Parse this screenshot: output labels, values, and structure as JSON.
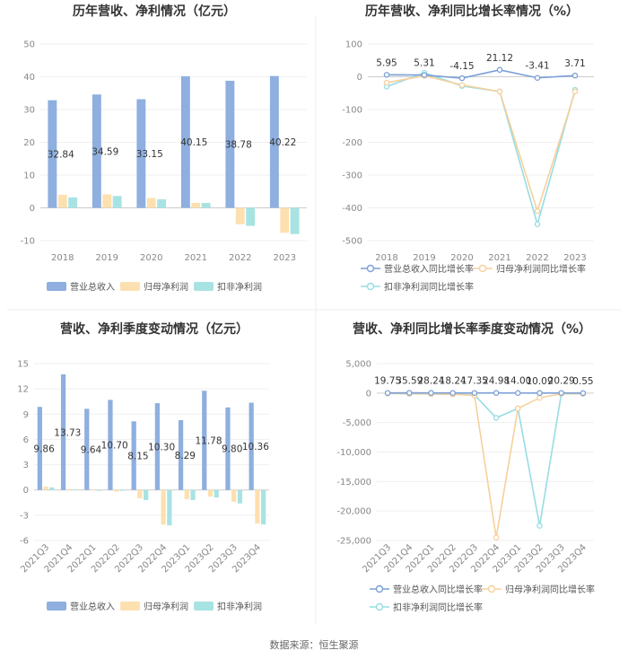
{
  "colors": {
    "revenue": "#8eafdf",
    "net_profit": "#fde0b0",
    "deducted_profit": "#a8e3e3",
    "revenue_line": "#7a9fd6",
    "net_line": "#f7d09c",
    "deducted_line": "#97dde3"
  },
  "source": "数据来源：恒生聚源",
  "chart_data": [
    {
      "type": "bar",
      "title": "历年营收、净利情况（亿元）",
      "categories": [
        "2018",
        "2019",
        "2020",
        "2021",
        "2022",
        "2023"
      ],
      "ylim": [
        -10,
        50
      ],
      "yticks": [
        -10,
        0,
        10,
        20,
        30,
        40,
        50
      ],
      "series": [
        {
          "name": "营业总收入",
          "values": [
            32.84,
            34.59,
            33.15,
            40.15,
            38.78,
            40.22
          ]
        },
        {
          "name": "归母净利润",
          "values": [
            4.0,
            4.1,
            3.0,
            1.5,
            -5.0,
            -7.6
          ]
        },
        {
          "name": "扣非净利润",
          "values": [
            3.2,
            3.6,
            2.6,
            1.5,
            -5.5,
            -8.0
          ]
        }
      ],
      "data_labels": [
        "32.84",
        "34.59",
        "33.15",
        "40.15",
        "38.78",
        "40.22"
      ],
      "legend": "bottom"
    },
    {
      "type": "line",
      "title": "历年营收、净利同比增长率情况（%）",
      "categories": [
        "2018",
        "2019",
        "2020",
        "2021",
        "2022",
        "2023"
      ],
      "ylim": [
        -500,
        100
      ],
      "yticks": [
        -500,
        -400,
        -300,
        -200,
        -100,
        0,
        100
      ],
      "series": [
        {
          "name": "营业总收入同比增长率",
          "values": [
            5.95,
            5.31,
            -4.15,
            21.12,
            -3.41,
            3.71
          ]
        },
        {
          "name": "归母净利润同比增长率",
          "values": [
            -18,
            3,
            -25,
            -45,
            -410,
            -45
          ]
        },
        {
          "name": "扣非净利润同比增长率",
          "values": [
            -30,
            12,
            -28,
            -45,
            -450,
            -40
          ]
        }
      ],
      "data_labels": [
        "5.95",
        "5.31",
        "-4.15",
        "21.12",
        "-3.41",
        "3.71"
      ],
      "legend": "bottom"
    },
    {
      "type": "bar",
      "title": "营收、净利季度变动情况（亿元）",
      "categories": [
        "2021Q3",
        "2021Q4",
        "2022Q1",
        "2022Q2",
        "2022Q3",
        "2022Q4",
        "2023Q1",
        "2023Q2",
        "2023Q3",
        "2023Q4"
      ],
      "ylim": [
        -6,
        15
      ],
      "yticks": [
        -6,
        -3,
        0,
        3,
        6,
        9,
        12,
        15
      ],
      "series": [
        {
          "name": "营业总收入",
          "values": [
            9.86,
            13.73,
            9.64,
            10.7,
            8.15,
            10.3,
            8.29,
            11.78,
            9.8,
            10.36
          ]
        },
        {
          "name": "归母净利润",
          "values": [
            0.4,
            0.1,
            -0.05,
            -0.2,
            -1.0,
            -4.1,
            -1.1,
            -0.8,
            -1.4,
            -4.0
          ]
        },
        {
          "name": "扣非净利润",
          "values": [
            0.3,
            0.05,
            -0.1,
            -0.1,
            -1.2,
            -4.2,
            -1.2,
            -0.9,
            -1.6,
            -4.1
          ]
        }
      ],
      "data_labels": [
        "9.86",
        "13.73",
        "9.64",
        "10.70",
        "8.15",
        "10.30",
        "8.29",
        "11.78",
        "9.80",
        "10.36"
      ],
      "legend": "bottom"
    },
    {
      "type": "line",
      "title": "营收、净利同比增长率季度变动情况（%）",
      "categories": [
        "2021Q3",
        "2021Q4",
        "2022Q1",
        "2022Q2",
        "2022Q3",
        "2022Q4",
        "2023Q1",
        "2023Q2",
        "2023Q3",
        "2023Q4"
      ],
      "ylim": [
        -25000,
        5000
      ],
      "yticks": [
        -25000,
        -20000,
        -15000,
        -10000,
        -5000,
        0,
        5000
      ],
      "series": [
        {
          "name": "营业总收入同比增长率",
          "values": [
            19.75,
            35.59,
            28.24,
            18.24,
            17.35,
            24.98,
            14.0,
            10.09,
            20.29,
            0.55
          ]
        },
        {
          "name": "归母净利润同比增长率",
          "values": [
            -50,
            -100,
            -150,
            -200,
            -400,
            -24500,
            -2600,
            -800,
            -100,
            -100
          ]
        },
        {
          "name": "扣非净利润同比增长率",
          "values": [
            -60,
            -120,
            -160,
            -180,
            -300,
            -4200,
            -2600,
            -22500,
            -100,
            -120
          ]
        }
      ],
      "data_labels": [
        "19.75",
        "35.59",
        "28.24",
        "18.24",
        "17.35",
        "24.98",
        "14.00",
        "10.09",
        "20.29",
        "0.55"
      ],
      "legend": "bottom"
    }
  ]
}
